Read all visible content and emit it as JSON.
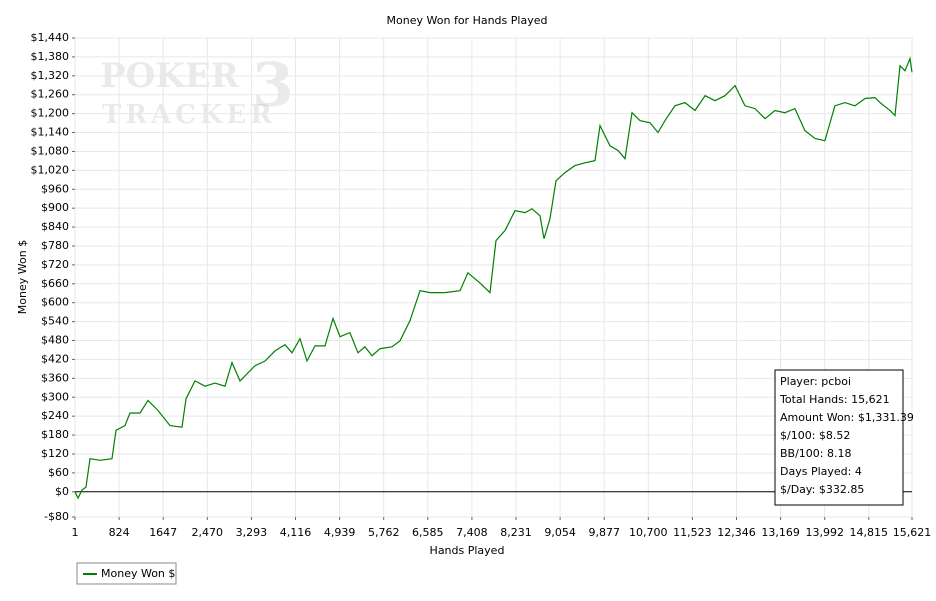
{
  "chart_data": {
    "type": "line",
    "title": "Money Won for Hands Played",
    "xlabel": "Hands Played",
    "ylabel": "Money Won $",
    "watermark": [
      "POKER",
      "TRACKER",
      "3"
    ],
    "stats": [
      "Player: pcboi",
      "Total Hands: 15,621",
      "Amount Won: $1,331.39",
      "$/100: $8.52",
      "BB/100: 8.18",
      "Days Played: 4",
      "$/Day: $332.85"
    ],
    "grid": true,
    "legend": "bottom-left",
    "xlim": [
      1,
      15621
    ],
    "ylim": [
      -80,
      1440
    ],
    "xticks": [
      1,
      824,
      1647,
      {
        "value": 2470,
        "label": "2,470"
      },
      {
        "value": 3293,
        "label": "3,293"
      },
      {
        "value": 4116,
        "label": "4,116"
      },
      {
        "value": 4939,
        "label": "4,939"
      },
      {
        "value": 5762,
        "label": "5,762"
      },
      {
        "value": 6585,
        "label": "6,585"
      },
      {
        "value": 7408,
        "label": "7,408"
      },
      {
        "value": 8231,
        "label": "8,231"
      },
      {
        "value": 9054,
        "label": "9,054"
      },
      {
        "value": 9877,
        "label": "9,877"
      },
      {
        "value": 10700,
        "label": "10,700"
      },
      {
        "value": 11523,
        "label": "11,523"
      },
      {
        "value": 12346,
        "label": "12,346"
      },
      {
        "value": 13169,
        "label": "13,169"
      },
      {
        "value": 13992,
        "label": "13,992"
      },
      {
        "value": 14815,
        "label": "14,815"
      },
      {
        "value": 15621,
        "label": "15,621"
      }
    ],
    "yticks": [
      {
        "value": -80,
        "label": "-$80"
      },
      {
        "value": 0,
        "label": "$0"
      },
      {
        "value": 60,
        "label": "$60"
      },
      {
        "value": 120,
        "label": "$120"
      },
      {
        "value": 180,
        "label": "$180"
      },
      {
        "value": 240,
        "label": "$240"
      },
      {
        "value": 300,
        "label": "$300"
      },
      {
        "value": 360,
        "label": "$360"
      },
      {
        "value": 420,
        "label": "$420"
      },
      {
        "value": 480,
        "label": "$480"
      },
      {
        "value": 540,
        "label": "$540"
      },
      {
        "value": 600,
        "label": "$600"
      },
      {
        "value": 660,
        "label": "$660"
      },
      {
        "value": 720,
        "label": "$720"
      },
      {
        "value": 780,
        "label": "$780"
      },
      {
        "value": 840,
        "label": "$840"
      },
      {
        "value": 900,
        "label": "$900"
      },
      {
        "value": 960,
        "label": "$960"
      },
      {
        "value": 1020,
        "label": "$1,020"
      },
      {
        "value": 1080,
        "label": "$1,080"
      },
      {
        "value": 1140,
        "label": "$1,140"
      },
      {
        "value": 1200,
        "label": "$1,200"
      },
      {
        "value": 1260,
        "label": "$1,260"
      },
      {
        "value": 1320,
        "label": "$1,320"
      },
      {
        "value": 1380,
        "label": "$1,380"
      },
      {
        "value": 1440,
        "label": "$1,440"
      }
    ],
    "x": [
      1,
      57,
      132,
      206,
      281,
      468,
      691,
      766,
      934,
      1027,
      1214,
      1363,
      1550,
      1774,
      1998,
      2072,
      2240,
      2427,
      2614,
      2800,
      2931,
      3080,
      3360,
      3547,
      3734,
      3920,
      4050,
      4200,
      4330,
      4479,
      4666,
      4815,
      4946,
      5132,
      5282,
      5412,
      5543,
      5692,
      5916,
      6066,
      6252,
      6439,
      6626,
      6906,
      7185,
      7334,
      7558,
      7745,
      7857,
      8025,
      8212,
      8398,
      8529,
      8678,
      8753,
      8865,
      8977,
      9145,
      9331,
      9518,
      9705,
      9798,
      9985,
      10134,
      10265,
      10396,
      10545,
      10732,
      10881,
      11012,
      11199,
      11385,
      11572,
      11759,
      11945,
      12132,
      12319,
      12505,
      12692,
      12879,
      13063,
      13250,
      13436,
      13623,
      13810,
      13996,
      14183,
      14370,
      14556,
      14743,
      14930,
      15023,
      15210,
      15303,
      15397,
      15490,
      15583,
      15621
    ],
    "series": [
      {
        "name": "Money Won $",
        "color": "#008000",
        "values": [
          0,
          -20,
          5,
          15,
          105,
          100,
          105,
          195,
          210,
          250,
          250,
          290,
          258,
          210,
          205,
          295,
          352,
          335,
          345,
          335,
          410,
          352,
          400,
          415,
          447,
          467,
          441,
          486,
          415,
          463,
          463,
          550,
          492,
          505,
          441,
          460,
          432,
          454,
          460,
          479,
          543,
          638,
          632,
          632,
          638,
          695,
          663,
          632,
          797,
          829,
          892,
          886,
          898,
          876,
          803,
          867,
          987,
          1013,
          1035,
          1044,
          1051,
          1162,
          1098,
          1083,
          1057,
          1203,
          1178,
          1171,
          1140,
          1178,
          1225,
          1235,
          1210,
          1257,
          1241,
          1257,
          1289,
          1225,
          1216,
          1184,
          1210,
          1203,
          1216,
          1146,
          1121,
          1114,
          1225,
          1235,
          1225,
          1248,
          1251,
          1235,
          1210,
          1194,
          1352,
          1336,
          1375,
          1331
        ]
      }
    ]
  }
}
